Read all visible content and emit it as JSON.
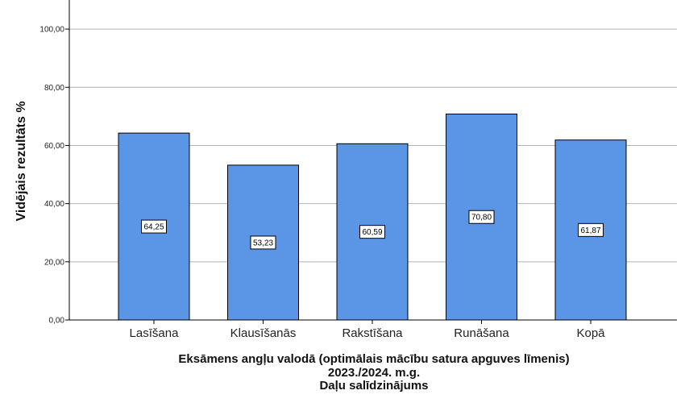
{
  "chart_data": {
    "type": "bar",
    "categories": [
      "Lasīšana",
      "Klausīšanās",
      "Rakstīšana",
      "Runāšana",
      "Kopā"
    ],
    "values": [
      64.25,
      53.23,
      60.59,
      70.8,
      61.87
    ],
    "value_labels": [
      "64,25",
      "53,23",
      "60,59",
      "70,80",
      "61,87"
    ],
    "ylabel": "Vidējais rezultāts %",
    "xlabel_lines": [
      "Eksāmens angļu valodā (optimālais mācību satura apguves līmenis)",
      "2023./2024. m.g.",
      "Daļu salīdzinājums"
    ],
    "yticks": [
      {
        "value": 0,
        "label": "0,00"
      },
      {
        "value": 20,
        "label": "20,00"
      },
      {
        "value": 40,
        "label": "40,00"
      },
      {
        "value": 60,
        "label": "60,00"
      },
      {
        "value": 80,
        "label": "80,00"
      },
      {
        "value": 100,
        "label": "100,00"
      }
    ],
    "ylim": [
      0,
      110
    ],
    "grid": true,
    "legend": "none",
    "bar_color": "#5b96e6",
    "bar_border_color": "#000000"
  }
}
